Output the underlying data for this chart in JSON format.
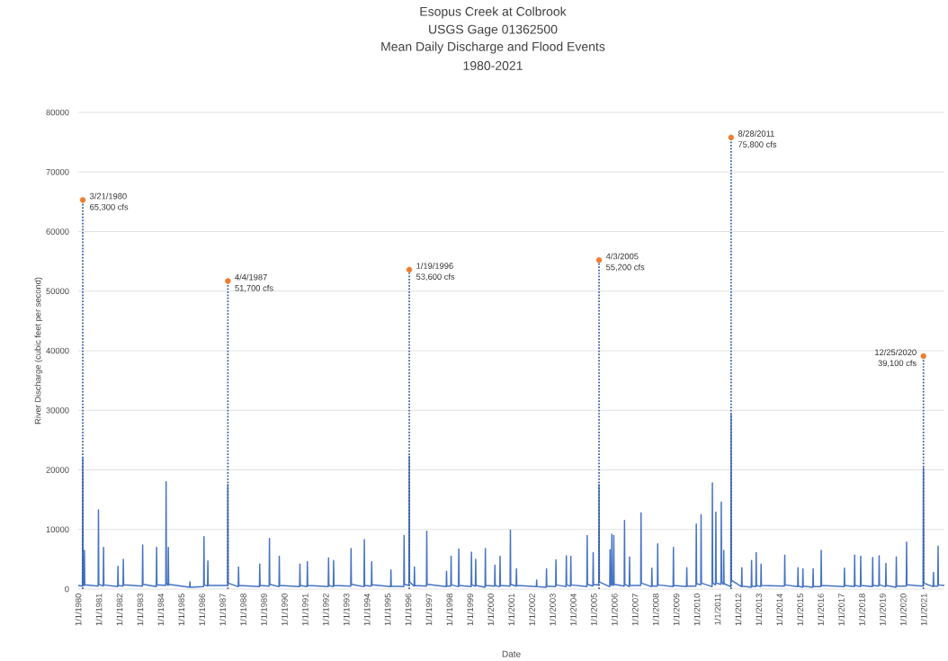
{
  "chart_data": {
    "type": "line",
    "title": "Esopus Creek at Colbrook",
    "subtitle": "USGS Gage 01362500",
    "xlabel": "Date",
    "ylabel": "River Discharge (cubic feet per second)",
    "annotations": [
      "Mean Daily Discharge and Flood Events",
      "1980-2021",
      {
        "text": "3/21/1980",
        "x": "1980-03-21",
        "y": 65300
      },
      {
        "text": "4/4/1987",
        "x": "1987-04-04",
        "y": 51700
      },
      {
        "text": "1/19/1996",
        "x": "1996-01-19",
        "y": 53600
      },
      {
        "text": "4/3/2005",
        "x": "2005-04-03",
        "y": 55200
      },
      {
        "text": "8/28/2011",
        "x": "2011-08-28",
        "y": 75800
      },
      {
        "text": "12/25/2020",
        "x": "2020-12-25",
        "y": 39100
      }
    ],
    "xlim": [
      "1980-01-01",
      "2021-12-31"
    ],
    "ylim": [
      0,
      80000
    ],
    "xticks": [
      {
        "value": "1980-01-01",
        "label": "1/1/1980"
      },
      {
        "value": "1981-01-01",
        "label": "1/1/1981"
      },
      {
        "value": "1982-01-01",
        "label": "1/1/1982"
      },
      {
        "value": "1983-01-01",
        "label": "1/1/1983"
      },
      {
        "value": "1984-01-01",
        "label": "1/1/1984"
      },
      {
        "value": "1985-01-01",
        "label": "1/1/1985"
      },
      {
        "value": "1986-01-01",
        "label": "1/1/1986"
      },
      {
        "value": "1987-01-01",
        "label": "1/1/1987"
      },
      {
        "value": "1988-01-01",
        "label": "1/1/1988"
      },
      {
        "value": "1989-01-01",
        "label": "1/1/1989"
      },
      {
        "value": "1990-01-01",
        "label": "1/1/1990"
      },
      {
        "value": "1991-01-01",
        "label": "1/1/1991"
      },
      {
        "value": "1992-01-01",
        "label": "1/1/1992"
      },
      {
        "value": "1993-01-01",
        "label": "1/1/1993"
      },
      {
        "value": "1994-01-01",
        "label": "1/1/1994"
      },
      {
        "value": "1995-01-01",
        "label": "1/1/1995"
      },
      {
        "value": "1996-01-01",
        "label": "1/1/1996"
      },
      {
        "value": "1997-01-01",
        "label": "1/1/1997"
      },
      {
        "value": "1998-01-01",
        "label": "1/1/1998"
      },
      {
        "value": "1999-01-01",
        "label": "1/1/1999"
      },
      {
        "value": "2000-01-01",
        "label": "1/1/2000"
      },
      {
        "value": "2001-01-01",
        "label": "1/1/2001"
      },
      {
        "value": "2002-01-01",
        "label": "1/1/2002"
      },
      {
        "value": "2003-01-01",
        "label": "1/1/2003"
      },
      {
        "value": "2004-01-01",
        "label": "1/1/2004"
      },
      {
        "value": "2005-01-01",
        "label": "1/1/2005"
      },
      {
        "value": "2006-01-01",
        "label": "1/1/2006"
      },
      {
        "value": "2007-01-01",
        "label": "1/1/2007"
      },
      {
        "value": "2008-01-01",
        "label": "1/1/2008"
      },
      {
        "value": "2009-01-01",
        "label": "1/1/2009"
      },
      {
        "value": "2010-01-01",
        "label": "1/1/2010"
      },
      {
        "value": "2011-01-01",
        "label": "1/1/2011"
      },
      {
        "value": "2012-01-01",
        "label": "1/1/2012"
      },
      {
        "value": "2013-01-01",
        "label": "1/1/2013"
      },
      {
        "value": "2014-01-01",
        "label": "1/1/2014"
      },
      {
        "value": "2015-01-01",
        "label": "1/1/2015"
      },
      {
        "value": "2016-01-01",
        "label": "1/1/2016"
      },
      {
        "value": "2017-01-01",
        "label": "1/1/2017"
      },
      {
        "value": "2018-01-01",
        "label": "1/1/2018"
      },
      {
        "value": "2019-01-01",
        "label": "1/1/2019"
      },
      {
        "value": "2020-01-01",
        "label": "1/1/2020"
      },
      {
        "value": "2021-01-01",
        "label": "1/1/2021"
      }
    ],
    "yticks": [
      0,
      10000,
      20000,
      30000,
      40000,
      50000,
      60000,
      70000,
      80000
    ],
    "grid": "y",
    "series": [
      {
        "color": "#4472c4",
        "x": [
          "1980-01-01",
          "1980-03-15",
          "1980-03-21",
          "1980-03-27",
          "1980-04-14",
          "1980-04-20",
          "1980-04-26",
          "1980-12-19",
          "1980-12-25",
          "1980-12-31",
          "1981-03-19",
          "1981-03-25",
          "1981-03-31",
          "1981-11-29",
          "1981-12-05",
          "1981-12-11",
          "1982-03-04",
          "1982-03-10",
          "1982-03-16",
          "1983-02-09",
          "1983-02-15",
          "1983-02-21",
          "1983-10-14",
          "1983-10-20",
          "1983-10-26",
          "1984-03-30",
          "1984-04-05",
          "1984-04-11",
          "1984-05-09",
          "1984-05-15",
          "1984-05-21",
          "1985-05-26",
          "1985-06-01",
          "1985-06-07",
          "1986-01-30",
          "1986-02-05",
          "1986-02-11",
          "1986-04-09",
          "1986-04-15",
          "1986-04-21",
          "1987-03-29",
          "1987-04-04",
          "1987-04-10",
          "1987-10-04",
          "1987-10-10",
          "1987-10-16",
          "1988-10-14",
          "1988-10-20",
          "1988-10-26",
          "1989-04-04",
          "1989-04-10",
          "1989-04-16",
          "1989-09-25",
          "1989-10-01",
          "1989-10-07",
          "1990-09-25",
          "1990-10-01",
          "1990-10-07",
          "1991-02-04",
          "1991-02-10",
          "1991-02-16",
          "1992-02-14",
          "1992-02-20",
          "1992-02-26",
          "1992-05-14",
          "1992-05-20",
          "1992-05-26",
          "1993-03-19",
          "1993-03-25",
          "1993-03-31",
          "1993-11-09",
          "1993-11-15",
          "1993-11-21",
          "1994-03-19",
          "1994-03-25",
          "1994-03-31",
          "1995-02-23",
          "1995-03-01",
          "1995-03-07",
          "1995-10-14",
          "1995-10-20",
          "1995-10-26",
          "1996-01-13",
          "1996-01-19",
          "1996-01-25",
          "1996-04-14",
          "1996-04-20",
          "1996-04-26",
          "1996-11-19",
          "1996-11-25",
          "1996-12-01",
          "1997-11-04",
          "1997-11-10",
          "1997-11-16",
          "1998-01-24",
          "1998-01-30",
          "1998-02-05",
          "1998-06-09",
          "1998-06-15",
          "1998-06-21",
          "1999-01-19",
          "1999-01-25",
          "1999-01-31",
          "1999-04-04",
          "1999-04-10",
          "1999-04-16",
          "1999-09-22",
          "1999-09-28",
          "1999-10-04",
          "2000-03-09",
          "2000-03-15",
          "2000-03-21",
          "2000-06-09",
          "2000-06-15",
          "2000-06-21",
          "2000-12-09",
          "2000-12-15",
          "2000-12-21",
          "2001-03-26",
          "2001-04-01",
          "2001-04-07",
          "2002-03-19",
          "2002-03-25",
          "2002-03-31",
          "2002-09-09",
          "2002-09-15",
          "2002-09-21",
          "2003-02-23",
          "2003-03-01",
          "2003-03-07",
          "2003-08-26",
          "2003-09-01",
          "2003-09-07",
          "2003-11-14",
          "2003-11-20",
          "2003-11-26",
          "2004-08-30",
          "2004-09-05",
          "2004-09-11",
          "2004-12-14",
          "2004-12-20",
          "2004-12-26",
          "2005-03-28",
          "2005-04-03",
          "2005-04-09",
          "2005-10-09",
          "2005-10-15",
          "2005-10-21",
          "2005-11-09",
          "2005-11-15",
          "2005-11-21",
          "2005-12-14",
          "2005-12-20",
          "2005-12-26",
          "2006-06-22",
          "2006-06-28",
          "2006-07-04",
          "2006-09-19",
          "2006-09-25",
          "2006-10-01",
          "2007-04-10",
          "2007-04-16",
          "2007-04-22",
          "2007-10-19",
          "2007-10-25",
          "2007-10-31",
          "2008-01-30",
          "2008-02-05",
          "2008-02-11",
          "2008-11-04",
          "2008-11-10",
          "2008-11-16",
          "2009-06-29",
          "2009-07-05",
          "2009-07-11",
          "2009-12-14",
          "2009-12-20",
          "2009-12-26",
          "2010-03-09",
          "2010-03-15",
          "2010-03-21",
          "2010-09-25",
          "2010-10-01",
          "2010-10-07",
          "2010-11-25",
          "2010-12-01",
          "2010-12-07",
          "2011-03-01",
          "2011-03-07",
          "2011-03-13",
          "2011-04-14",
          "2011-04-20",
          "2011-04-26",
          "2011-08-22",
          "2011-08-28",
          "2011-09-03",
          "2012-02-28",
          "2012-03-05",
          "2012-03-11",
          "2012-08-19",
          "2012-08-25",
          "2012-08-31",
          "2012-11-09",
          "2012-11-15",
          "2012-11-21",
          "2013-02-04",
          "2013-02-10",
          "2013-02-16",
          "2014-03-30",
          "2014-04-05",
          "2014-04-11",
          "2014-11-19",
          "2014-11-25",
          "2014-12-01",
          "2015-02-14",
          "2015-02-20",
          "2015-02-26",
          "2015-08-14",
          "2015-08-20",
          "2015-08-26",
          "2016-01-04",
          "2016-01-10",
          "2016-01-16",
          "2017-02-19",
          "2017-02-25",
          "2017-03-03",
          "2017-08-19",
          "2017-08-25",
          "2017-08-31",
          "2017-12-04",
          "2017-12-10",
          "2017-12-16",
          "2018-07-04",
          "2018-07-10",
          "2018-07-16",
          "2018-10-26",
          "2018-11-01",
          "2018-11-07",
          "2019-02-23",
          "2019-03-01",
          "2019-03-07",
          "2019-08-26",
          "2019-09-01",
          "2019-09-07",
          "2020-02-24",
          "2020-03-01",
          "2020-03-07",
          "2020-12-19",
          "2020-12-25",
          "2020-12-31",
          "2021-06-14",
          "2021-06-20",
          "2021-06-26",
          "2021-09-04",
          "2021-09-10",
          "2021-09-16",
          "2021-12-31"
        ],
        "values": [
          600,
          500,
          22000,
          800,
          600,
          6500,
          700,
          500,
          13300,
          800,
          500,
          7000,
          700,
          400,
          3800,
          600,
          500,
          5000,
          700,
          500,
          7400,
          800,
          400,
          7000,
          700,
          600,
          18000,
          1000,
          600,
          7000,
          800,
          300,
          1200,
          300,
          400,
          8800,
          700,
          500,
          4700,
          600,
          600,
          17500,
          1000,
          400,
          3700,
          600,
          400,
          4200,
          600,
          500,
          8500,
          800,
          400,
          5500,
          600,
          400,
          4200,
          600,
          400,
          4600,
          600,
          400,
          5200,
          600,
          400,
          4800,
          600,
          500,
          6800,
          800,
          400,
          8300,
          600,
          500,
          4600,
          700,
          400,
          3200,
          500,
          400,
          9000,
          800,
          600,
          22300,
          1200,
          500,
          3700,
          600,
          500,
          9700,
          800,
          400,
          3000,
          500,
          500,
          5500,
          700,
          400,
          6700,
          600,
          400,
          6200,
          700,
          500,
          5000,
          600,
          300,
          6800,
          600,
          500,
          4000,
          600,
          400,
          5500,
          600,
          500,
          9900,
          800,
          500,
          3400,
          600,
          400,
          1500,
          400,
          300,
          3400,
          500,
          400,
          4900,
          700,
          400,
          5600,
          700,
          500,
          5500,
          700,
          400,
          9000,
          800,
          500,
          6100,
          700,
          700,
          17500,
          1200,
          400,
          6600,
          900,
          600,
          9200,
          900,
          600,
          9000,
          800,
          500,
          11500,
          800,
          400,
          5400,
          600,
          600,
          12800,
          1000,
          400,
          3500,
          500,
          500,
          7600,
          700,
          400,
          7000,
          600,
          400,
          3600,
          500,
          500,
          10900,
          900,
          700,
          12500,
          1000,
          400,
          17800,
          1000,
          700,
          12900,
          1000,
          800,
          14600,
          1200,
          800,
          6500,
          900,
          400,
          29400,
          1500,
          400,
          3600,
          500,
          300,
          4800,
          500,
          400,
          6100,
          600,
          400,
          4200,
          600,
          500,
          5700,
          700,
          400,
          3600,
          500,
          300,
          3400,
          500,
          300,
          3400,
          400,
          400,
          6500,
          600,
          400,
          3500,
          600,
          400,
          5700,
          600,
          400,
          5500,
          600,
          400,
          5300,
          600,
          500,
          5600,
          700,
          400,
          4300,
          600,
          300,
          5400,
          500,
          500,
          7900,
          700,
          500,
          20300,
          1000,
          400,
          2800,
          500,
          500,
          7200,
          700,
          600
        ]
      },
      {
        "type": "lollipop",
        "color": "#ed7d31",
        "marker": "circle",
        "line_style": "dotted",
        "x": [
          "1980-03-21",
          "1987-04-04",
          "1996-01-19",
          "2005-04-03",
          "2011-08-28",
          "2020-12-25"
        ],
        "values": [
          65300,
          51700,
          53600,
          55200,
          75800,
          39100
        ],
        "value_labels": [
          "65,300 cfs",
          "51,700 cfs",
          "53,600 cfs",
          "55,200 cfs",
          "75,800 cfs",
          "39,100 cfs"
        ]
      }
    ]
  }
}
